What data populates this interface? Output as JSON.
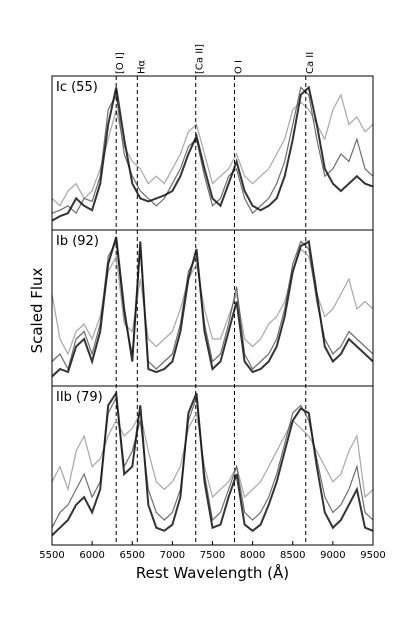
{
  "chart_data": [
    {
      "type": "line",
      "panel_label": "Ic (55)",
      "xlim": [
        5500,
        9500
      ],
      "ylim": [
        0,
        1
      ],
      "lines": [
        {
          "x": 6300,
          "label": "[O I]"
        },
        {
          "x": 6563,
          "label": "Hα"
        },
        {
          "x": 7291,
          "label": "[Ca II]"
        },
        {
          "x": 7774,
          "label": "O I"
        },
        {
          "x": 8662,
          "label": "Ca II"
        }
      ],
      "x": [
        5500,
        5600,
        5700,
        5800,
        5900,
        6000,
        6100,
        6200,
        6300,
        6400,
        6500,
        6600,
        6700,
        6800,
        6900,
        7000,
        7100,
        7200,
        7300,
        7400,
        7500,
        7600,
        7700,
        7800,
        7900,
        8000,
        8100,
        8200,
        8300,
        8400,
        8500,
        8600,
        8700,
        8800,
        8900,
        9000,
        9100,
        9200,
        9300,
        9400,
        9500
      ],
      "series": [
        {
          "color": "#999999",
          "values": [
            0.2,
            0.15,
            0.25,
            0.3,
            0.2,
            0.25,
            0.4,
            0.6,
            0.8,
            0.55,
            0.45,
            0.4,
            0.3,
            0.35,
            0.3,
            0.4,
            0.5,
            0.65,
            0.7,
            0.5,
            0.3,
            0.35,
            0.4,
            0.5,
            0.35,
            0.3,
            0.35,
            0.4,
            0.5,
            0.6,
            0.8,
            0.85,
            0.8,
            0.7,
            0.6,
            0.8,
            0.9,
            0.7,
            0.75,
            0.65,
            0.7
          ]
        },
        {
          "color": "#555555",
          "values": [
            0.1,
            0.12,
            0.15,
            0.1,
            0.2,
            0.18,
            0.35,
            0.8,
            0.9,
            0.5,
            0.35,
            0.25,
            0.2,
            0.15,
            0.2,
            0.3,
            0.4,
            0.55,
            0.6,
            0.35,
            0.15,
            0.2,
            0.35,
            0.4,
            0.2,
            0.1,
            0.15,
            0.2,
            0.3,
            0.45,
            0.7,
            0.95,
            0.9,
            0.6,
            0.35,
            0.4,
            0.5,
            0.45,
            0.6,
            0.4,
            0.35
          ]
        },
        {
          "color": "#111111",
          "values": [
            0.05,
            0.08,
            0.1,
            0.2,
            0.15,
            0.12,
            0.3,
            0.7,
            0.95,
            0.6,
            0.3,
            0.2,
            0.18,
            0.2,
            0.22,
            0.25,
            0.35,
            0.5,
            0.62,
            0.4,
            0.2,
            0.15,
            0.3,
            0.45,
            0.25,
            0.15,
            0.12,
            0.15,
            0.2,
            0.35,
            0.6,
            0.9,
            0.95,
            0.7,
            0.4,
            0.3,
            0.25,
            0.3,
            0.35,
            0.3,
            0.28
          ]
        }
      ]
    },
    {
      "type": "line",
      "panel_label": "Ib (92)",
      "xlim": [
        5500,
        9500
      ],
      "ylim": [
        0,
        1
      ],
      "ylabel": "Scaled Flux",
      "x": [
        5500,
        5600,
        5700,
        5800,
        5900,
        6000,
        6100,
        6200,
        6300,
        6400,
        6500,
        6600,
        6700,
        6800,
        6900,
        7000,
        7100,
        7200,
        7300,
        7400,
        7500,
        7600,
        7700,
        7800,
        7900,
        8000,
        8100,
        8200,
        8300,
        8400,
        8500,
        8600,
        8700,
        8800,
        8900,
        9000,
        9100,
        9200,
        9300,
        9400,
        9500
      ],
      "series": [
        {
          "color": "#999999",
          "values": [
            0.6,
            0.3,
            0.2,
            0.35,
            0.4,
            0.3,
            0.45,
            0.75,
            0.85,
            0.4,
            0.35,
            0.7,
            0.3,
            0.25,
            0.3,
            0.35,
            0.5,
            0.7,
            0.8,
            0.5,
            0.3,
            0.3,
            0.45,
            0.6,
            0.3,
            0.25,
            0.3,
            0.4,
            0.45,
            0.55,
            0.75,
            0.9,
            0.85,
            0.6,
            0.45,
            0.5,
            0.6,
            0.7,
            0.5,
            0.55,
            0.5
          ]
        },
        {
          "color": "#555555",
          "values": [
            0.15,
            0.2,
            0.1,
            0.3,
            0.35,
            0.2,
            0.4,
            0.85,
            0.95,
            0.45,
            0.2,
            0.9,
            0.15,
            0.1,
            0.15,
            0.2,
            0.4,
            0.75,
            0.85,
            0.4,
            0.15,
            0.2,
            0.4,
            0.65,
            0.2,
            0.1,
            0.15,
            0.2,
            0.3,
            0.5,
            0.8,
            0.95,
            0.9,
            0.55,
            0.3,
            0.2,
            0.25,
            0.35,
            0.3,
            0.25,
            0.2
          ]
        },
        {
          "color": "#111111",
          "values": [
            0.05,
            0.1,
            0.08,
            0.25,
            0.3,
            0.15,
            0.35,
            0.8,
            0.98,
            0.5,
            0.15,
            0.95,
            0.1,
            0.08,
            0.1,
            0.15,
            0.35,
            0.7,
            0.9,
            0.35,
            0.1,
            0.15,
            0.35,
            0.55,
            0.15,
            0.08,
            0.1,
            0.15,
            0.25,
            0.45,
            0.75,
            0.92,
            0.95,
            0.6,
            0.25,
            0.15,
            0.2,
            0.3,
            0.25,
            0.2,
            0.15
          ]
        }
      ]
    },
    {
      "type": "line",
      "panel_label": "IIb (79)",
      "xlim": [
        5500,
        9500
      ],
      "ylim": [
        0,
        1
      ],
      "xlabel": "Rest Wavelength (Å)",
      "xticks": [
        5500,
        6000,
        6500,
        7000,
        7500,
        8000,
        8500,
        9000,
        9500
      ],
      "x": [
        5500,
        5600,
        5700,
        5800,
        5900,
        6000,
        6100,
        6200,
        6300,
        6400,
        6500,
        6600,
        6700,
        6800,
        6900,
        7000,
        7100,
        7200,
        7300,
        7400,
        7500,
        7600,
        7700,
        7800,
        7900,
        8000,
        8100,
        8200,
        8300,
        8400,
        8500,
        8600,
        8700,
        8800,
        8900,
        9000,
        9100,
        9200,
        9300,
        9400,
        9500
      ],
      "series": [
        {
          "color": "#999999",
          "values": [
            0.4,
            0.5,
            0.35,
            0.6,
            0.7,
            0.5,
            0.55,
            0.7,
            0.8,
            0.7,
            0.75,
            0.85,
            0.6,
            0.4,
            0.35,
            0.4,
            0.5,
            0.75,
            0.85,
            0.5,
            0.3,
            0.35,
            0.4,
            0.5,
            0.3,
            0.35,
            0.4,
            0.5,
            0.6,
            0.7,
            0.8,
            0.75,
            0.7,
            0.6,
            0.5,
            0.4,
            0.45,
            0.6,
            0.7,
            0.3,
            0.35
          ]
        },
        {
          "color": "#555555",
          "values": [
            0.1,
            0.2,
            0.25,
            0.35,
            0.45,
            0.3,
            0.4,
            0.85,
            0.95,
            0.5,
            0.6,
            0.8,
            0.35,
            0.2,
            0.15,
            0.2,
            0.35,
            0.8,
            0.95,
            0.45,
            0.15,
            0.2,
            0.35,
            0.5,
            0.2,
            0.15,
            0.2,
            0.3,
            0.45,
            0.65,
            0.85,
            0.9,
            0.8,
            0.55,
            0.3,
            0.2,
            0.25,
            0.35,
            0.5,
            0.2,
            0.15
          ]
        },
        {
          "color": "#111111",
          "values": [
            0.05,
            0.1,
            0.15,
            0.25,
            0.3,
            0.2,
            0.35,
            0.9,
            0.98,
            0.45,
            0.5,
            0.9,
            0.25,
            0.1,
            0.08,
            0.12,
            0.3,
            0.85,
            0.98,
            0.4,
            0.1,
            0.12,
            0.3,
            0.45,
            0.12,
            0.08,
            0.12,
            0.25,
            0.4,
            0.6,
            0.8,
            0.88,
            0.85,
            0.5,
            0.2,
            0.1,
            0.15,
            0.25,
            0.35,
            0.1,
            0.08
          ]
        }
      ]
    }
  ]
}
